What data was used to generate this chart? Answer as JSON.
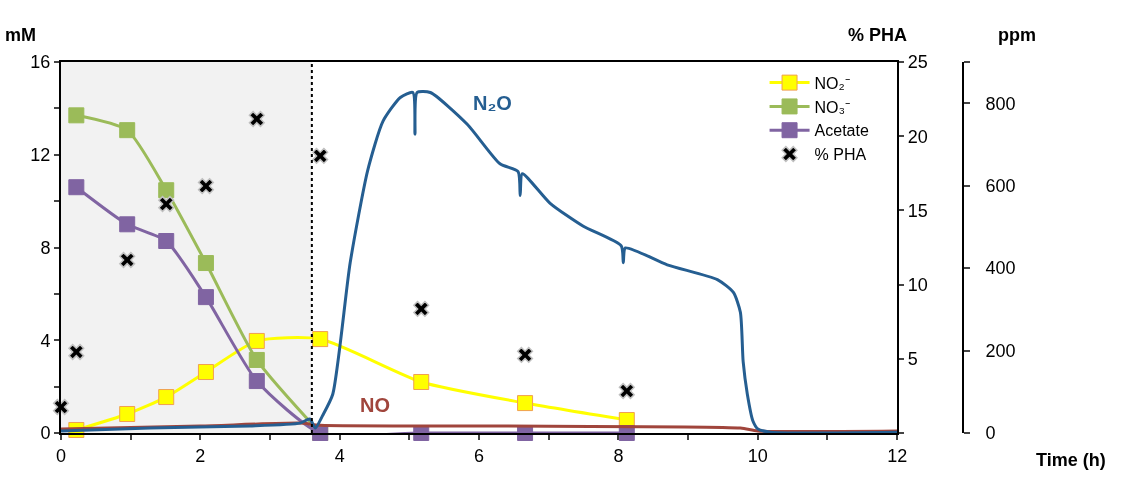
{
  "chart_data": {
    "type": "line",
    "xlabel": "Time (h)",
    "ylabel": "mM",
    "y2label": "% PHA",
    "y3label": "ppm",
    "xlim": [
      0,
      12
    ],
    "xticks": [
      0,
      {
        "value": 1,
        "label": null
      },
      2,
      {
        "value": 3,
        "label": null
      },
      4,
      {
        "value": 5,
        "label": null
      },
      6,
      {
        "value": 7,
        "label": null
      },
      8,
      {
        "value": 9,
        "label": null
      },
      10,
      {
        "value": 11,
        "label": null
      },
      12
    ],
    "ylim": [
      0,
      16
    ],
    "yticks": [
      0,
      {
        "value": 2,
        "label": null
      },
      4,
      {
        "value": 6,
        "label": null
      },
      8,
      {
        "value": 10,
        "label": null
      },
      12,
      {
        "value": 14,
        "label": null
      },
      16
    ],
    "y2lim": [
      0,
      25
    ],
    "y2ticks": [
      {
        "value": 0,
        "label": null
      },
      5,
      10,
      15,
      20,
      25
    ],
    "y3lim": [
      0,
      900
    ],
    "y3ticks": [
      0,
      200,
      400,
      600,
      800,
      {
        "value": 900,
        "label": null
      }
    ],
    "grid": false,
    "legend": "top right",
    "line_style": "solid",
    "bands": [
      {
        "axis": "x",
        "from": 0,
        "to": 3.6,
        "color": "#f2f2f2"
      }
    ],
    "ref_lines": [
      {
        "axis": "x",
        "value": 3.6,
        "color": "#000000",
        "line_style": "dotted"
      }
    ],
    "series": [
      {
        "name": "NO₂⁻",
        "marker": "square",
        "color": "#ffff00",
        "x": [
          0.22,
          0.95,
          1.51,
          2.08,
          2.81,
          3.72,
          5.17,
          6.66,
          8.12
        ],
        "values": [
          0.13,
          0.82,
          1.55,
          2.63,
          3.97,
          4.05,
          2.2,
          1.29,
          0.56
        ]
      },
      {
        "name": "NO₃⁻",
        "marker": "square",
        "color": "#9bbb59",
        "x": [
          0.22,
          0.95,
          1.51,
          2.08,
          2.81,
          3.72
        ],
        "values": [
          13.7,
          13.06,
          10.47,
          7.33,
          3.15,
          0
        ]
      },
      {
        "name": "Acetate",
        "marker": "square",
        "color": "#8064a2",
        "x": [
          0.22,
          0.95,
          1.51,
          2.08,
          2.81,
          3.72,
          5.17,
          6.66,
          8.12
        ],
        "values": [
          10.6,
          9.0,
          8.28,
          5.86,
          2.24,
          0,
          0,
          0,
          0
        ]
      },
      {
        "name": "% PHA",
        "type": "scatter",
        "marker": "cross",
        "axis": "y2",
        "color": "#000000",
        "x": [
          0,
          0.22,
          0.95,
          1.51,
          2.08,
          2.81,
          3.72,
          5.17,
          6.66,
          8.12
        ],
        "values": [
          1.75,
          5.46,
          11.66,
          15.43,
          16.64,
          21.16,
          18.67,
          8.36,
          5.26,
          2.83
        ]
      },
      {
        "name": "NO",
        "marker": "none",
        "axis": "y3",
        "color": "#a0453c",
        "x": [
          0,
          2,
          3.43,
          3.72,
          6.3,
          9.75,
          10,
          12
        ],
        "values": [
          10,
          17,
          24,
          19,
          17,
          12,
          5,
          5
        ]
      },
      {
        "name": "N₂O",
        "marker": "none",
        "axis": "y3",
        "color": "#255e91",
        "x": [
          0,
          1.28,
          2.71,
          3.43,
          3.57,
          3.65,
          3.75,
          3.9,
          4.15,
          4.4,
          4.62,
          4.87,
          5.05,
          5.08,
          5.11,
          5.3,
          5.83,
          6.3,
          6.56,
          6.59,
          6.62,
          7.02,
          7.49,
          8.04,
          8.07,
          8.1,
          8.7,
          9.42,
          9.65,
          9.75,
          9.79,
          9.85,
          9.93,
          10.0,
          10.18,
          12
        ],
        "values": [
          5,
          12,
          17,
          24,
          34,
          12,
          41,
          94,
          413,
          636,
          756,
          814,
          826,
          725,
          826,
          826,
          749,
          653,
          634,
          576,
          629,
          557,
          502,
          454,
          413,
          449,
          408,
          372,
          341,
          293,
          173,
          94,
          29,
          10,
          2,
          2
        ]
      }
    ]
  }
}
